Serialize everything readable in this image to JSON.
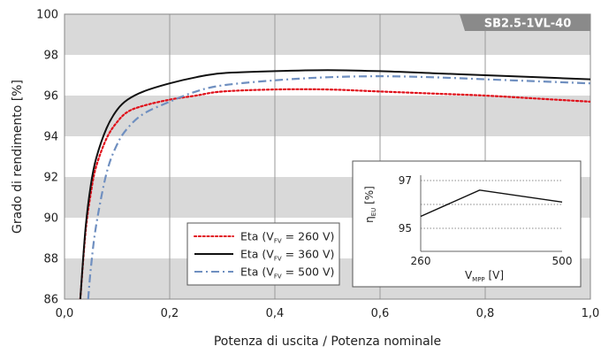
{
  "chart_data": [
    {
      "type": "line",
      "model_badge": "SB2.5-1VL-40",
      "xlabel": "Potenza di uscita / Potenza nominale",
      "ylabel": "Grado di rendimento [%]",
      "xlim": [
        0,
        1
      ],
      "ylim": [
        86,
        100
      ],
      "x_ticks": [
        "0,0",
        "0,2",
        "0,4",
        "0,6",
        "0,8",
        "1,0"
      ],
      "y_ticks": [
        "86",
        "88",
        "90",
        "92",
        "94",
        "96",
        "98",
        "100"
      ],
      "grid": "vertical lines at x ticks, alternating grey horizontal bands",
      "legend_position": "bottom-center",
      "series": [
        {
          "name": "Eta (VFV = 260 V)",
          "legend_main": "Eta (V",
          "legend_sub": "FV",
          "legend_tail": " = 260 V)",
          "color": "#e0101a",
          "dash": "dotted",
          "x": [
            0.03,
            0.04,
            0.05,
            0.06,
            0.08,
            0.1,
            0.12,
            0.15,
            0.2,
            0.25,
            0.3,
            0.4,
            0.5,
            0.6,
            0.7,
            0.8,
            0.9,
            1.0
          ],
          "y": [
            86.0,
            89.3,
            91.2,
            92.5,
            93.9,
            94.7,
            95.2,
            95.5,
            95.8,
            96.0,
            96.2,
            96.3,
            96.3,
            96.2,
            96.1,
            96.0,
            95.85,
            95.7
          ]
        },
        {
          "name": "Eta (VFV = 360 V)",
          "legend_main": "Eta (V",
          "legend_sub": "FV",
          "legend_tail": " = 360 V)",
          "color": "#111111",
          "dash": "solid",
          "x": [
            0.03,
            0.04,
            0.05,
            0.06,
            0.08,
            0.1,
            0.12,
            0.15,
            0.2,
            0.25,
            0.3,
            0.4,
            0.5,
            0.6,
            0.7,
            0.8,
            0.9,
            1.0
          ],
          "y": [
            86.0,
            89.5,
            91.6,
            92.9,
            94.4,
            95.3,
            95.8,
            96.2,
            96.6,
            96.9,
            97.1,
            97.2,
            97.25,
            97.2,
            97.1,
            97.0,
            96.9,
            96.8
          ]
        },
        {
          "name": "Eta (VFV = 500 V)",
          "legend_main": "Eta (V",
          "legend_sub": "FV",
          "legend_tail": " = 500 V)",
          "color": "#6f8fc0",
          "dash": "dashdot",
          "x": [
            0.045,
            0.05,
            0.06,
            0.08,
            0.1,
            0.12,
            0.15,
            0.2,
            0.25,
            0.3,
            0.4,
            0.5,
            0.6,
            0.7,
            0.8,
            0.9,
            1.0
          ],
          "y": [
            86.0,
            87.5,
            89.6,
            92.2,
            93.6,
            94.4,
            95.1,
            95.7,
            96.2,
            96.5,
            96.75,
            96.9,
            96.95,
            96.9,
            96.8,
            96.7,
            96.6
          ]
        }
      ]
    },
    {
      "type": "line",
      "inset": true,
      "ylabel_main": "η",
      "ylabel_sub": "EU",
      "ylabel_tail": " [%]",
      "xlabel_main": "V",
      "xlabel_sub": "MPP",
      "xlabel_tail": " [V]",
      "xlim": [
        260,
        500
      ],
      "ylim": [
        95,
        97
      ],
      "x_ticks": [
        "260",
        "500"
      ],
      "y_ticks": [
        "95",
        "97"
      ],
      "series": [
        {
          "x": [
            260,
            360,
            500
          ],
          "y": [
            95.5,
            96.6,
            96.1
          ],
          "color": "#111111"
        }
      ]
    }
  ]
}
